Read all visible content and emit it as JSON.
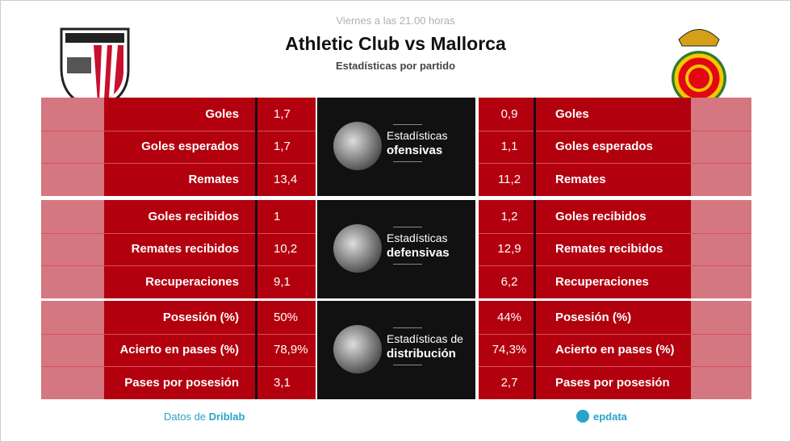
{
  "header": {
    "date": "Viernes a las 21.00 horas",
    "title": "Athletic Club vs Mallorca",
    "subtitle": "Estadísticas por partido"
  },
  "sections": [
    {
      "label_line1": "Estadísticas",
      "label_line2": "ofensivas",
      "rows": [
        {
          "label": "Goles",
          "home": "1,7",
          "away": "0,9"
        },
        {
          "label": "Goles esperados",
          "home": "1,7",
          "away": "1,1"
        },
        {
          "label": "Remates",
          "home": "13,4",
          "away": "11,2"
        }
      ]
    },
    {
      "label_line1": "Estadísticas",
      "label_line2": "defensivas",
      "rows": [
        {
          "label": "Goles recibidos",
          "home": "1",
          "away": "1,2"
        },
        {
          "label": "Remates recibidos",
          "home": "10,2",
          "away": "12,9"
        },
        {
          "label": "Recuperaciones",
          "home": "9,1",
          "away": "6,2"
        }
      ]
    },
    {
      "label_line1": "Estadísticas de",
      "label_line2": "distribución",
      "rows": [
        {
          "label": "Posesión (%)",
          "home": "50%",
          "away": "44%"
        },
        {
          "label": "Acierto en pases (%)",
          "home": "78,9%",
          "away": "74,3%"
        },
        {
          "label": "Pases por posesión",
          "home": "3,1",
          "away": "2,7"
        }
      ]
    }
  ],
  "footer": {
    "source_prefix": "Datos de",
    "source": "Driblab",
    "brand": "epdata"
  }
}
